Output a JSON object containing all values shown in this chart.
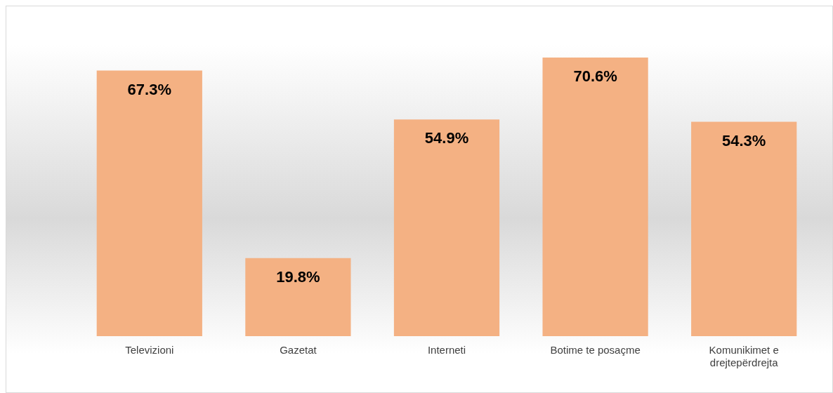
{
  "chart_data": {
    "type": "bar",
    "categories": [
      "Televizioni",
      "Gazetat",
      "Interneti",
      "Botime te posaçme",
      "Komunikimet e drejtepërdrejta"
    ],
    "values": [
      67.3,
      19.8,
      54.9,
      70.6,
      54.3
    ],
    "value_labels": [
      "67.3%",
      "19.8%",
      "54.9%",
      "70.6%",
      "54.3%"
    ],
    "color": "#f4b183",
    "grid": false,
    "legend": false
  }
}
